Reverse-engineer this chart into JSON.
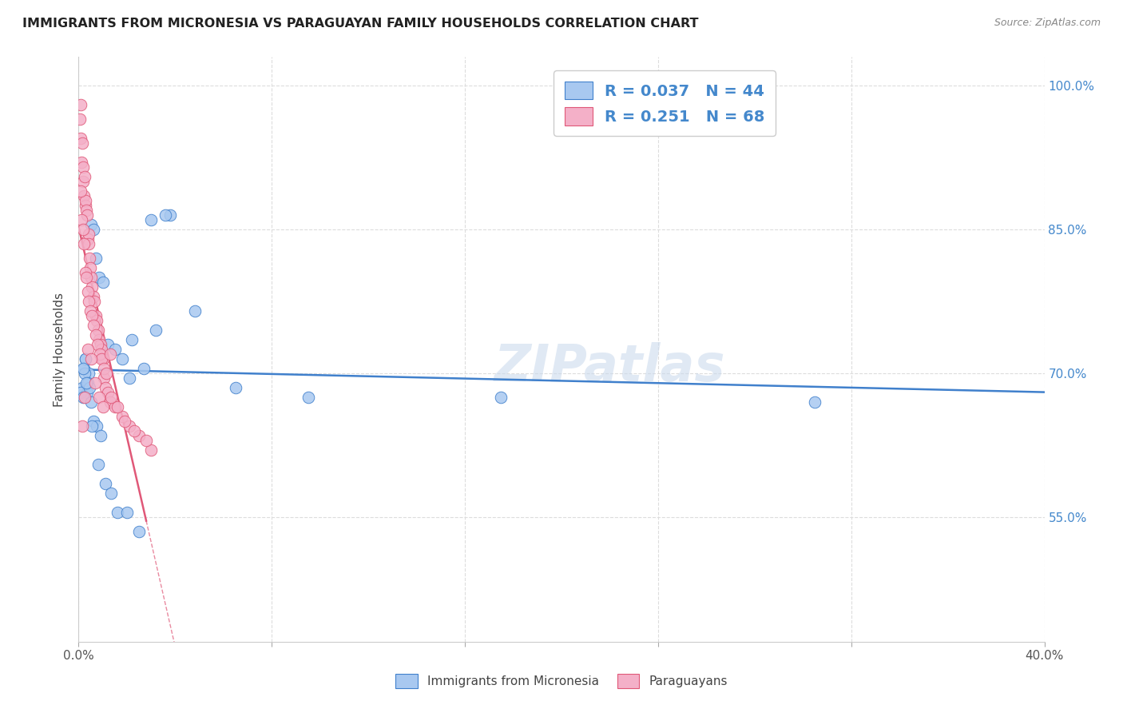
{
  "title": "IMMIGRANTS FROM MICRONESIA VS PARAGUAYAN FAMILY HOUSEHOLDS CORRELATION CHART",
  "source": "Source: ZipAtlas.com",
  "ylabel": "Family Households",
  "yticks": [
    55.0,
    70.0,
    85.0,
    100.0
  ],
  "ytick_labels": [
    "55.0%",
    "70.0%",
    "85.0%",
    "100.0%"
  ],
  "xlim": [
    0.0,
    40.0
  ],
  "ylim": [
    42.0,
    103.0
  ],
  "legend_label1": "Immigrants from Micronesia",
  "legend_label2": "Paraguayans",
  "r1": "0.037",
  "n1": "44",
  "r2": "0.251",
  "n2": "68",
  "color_blue": "#a8c8f0",
  "color_pink": "#f4b0c8",
  "line_color_blue": "#4080cc",
  "line_color_pink": "#e05878",
  "watermark": "ZIPatlas",
  "micronesia_x": [
    0.15,
    0.22,
    0.28,
    0.35,
    0.42,
    0.5,
    0.6,
    0.7,
    0.85,
    1.0,
    1.2,
    1.5,
    1.8,
    2.2,
    2.7,
    3.2,
    3.8,
    4.8,
    6.5,
    9.5,
    17.5,
    30.5,
    0.1,
    0.18,
    0.25,
    0.3,
    0.38,
    0.45,
    0.52,
    0.62,
    0.75,
    0.9,
    1.1,
    1.35,
    1.6,
    2.0,
    2.5,
    3.0,
    3.6,
    0.2,
    0.32,
    0.55,
    0.8,
    2.1
  ],
  "micronesia_y": [
    68.5,
    70.5,
    71.5,
    68.0,
    70.0,
    85.5,
    85.0,
    82.0,
    80.0,
    79.5,
    73.0,
    72.5,
    71.5,
    73.5,
    70.5,
    74.5,
    86.5,
    76.5,
    68.5,
    67.5,
    67.5,
    67.0,
    68.0,
    67.5,
    70.0,
    71.5,
    69.0,
    68.5,
    67.0,
    65.0,
    64.5,
    63.5,
    58.5,
    57.5,
    55.5,
    55.5,
    53.5,
    86.0,
    86.5,
    70.5,
    69.0,
    64.5,
    60.5,
    69.5
  ],
  "paraguayan_x": [
    0.05,
    0.08,
    0.1,
    0.12,
    0.15,
    0.18,
    0.2,
    0.22,
    0.25,
    0.28,
    0.3,
    0.32,
    0.35,
    0.38,
    0.4,
    0.42,
    0.45,
    0.48,
    0.5,
    0.55,
    0.6,
    0.65,
    0.7,
    0.75,
    0.8,
    0.85,
    0.9,
    0.95,
    1.0,
    1.05,
    1.1,
    1.2,
    1.3,
    1.5,
    1.8,
    2.1,
    2.5,
    3.0,
    0.08,
    0.12,
    0.17,
    0.22,
    0.27,
    0.32,
    0.37,
    0.42,
    0.48,
    0.55,
    0.62,
    0.7,
    0.78,
    0.88,
    0.95,
    1.05,
    1.15,
    1.35,
    1.6,
    1.9,
    2.3,
    2.8,
    0.15,
    0.25,
    0.38,
    0.52,
    0.68,
    0.85,
    1.0,
    1.3
  ],
  "paraguayan_y": [
    96.5,
    94.5,
    98.0,
    92.0,
    94.0,
    91.5,
    90.0,
    88.5,
    90.5,
    87.5,
    88.0,
    87.0,
    86.5,
    84.0,
    84.5,
    83.5,
    82.0,
    81.0,
    80.0,
    79.0,
    78.0,
    77.5,
    76.0,
    75.5,
    74.5,
    73.5,
    73.0,
    72.5,
    71.5,
    69.5,
    68.5,
    68.0,
    67.0,
    66.5,
    65.5,
    64.5,
    63.5,
    62.0,
    89.0,
    86.0,
    85.0,
    83.5,
    80.5,
    80.0,
    78.5,
    77.5,
    76.5,
    76.0,
    75.0,
    74.0,
    73.0,
    72.0,
    71.5,
    70.5,
    70.0,
    67.5,
    66.5,
    65.0,
    64.0,
    63.0,
    64.5,
    67.5,
    72.5,
    71.5,
    69.0,
    67.5,
    66.5,
    72.0
  ]
}
